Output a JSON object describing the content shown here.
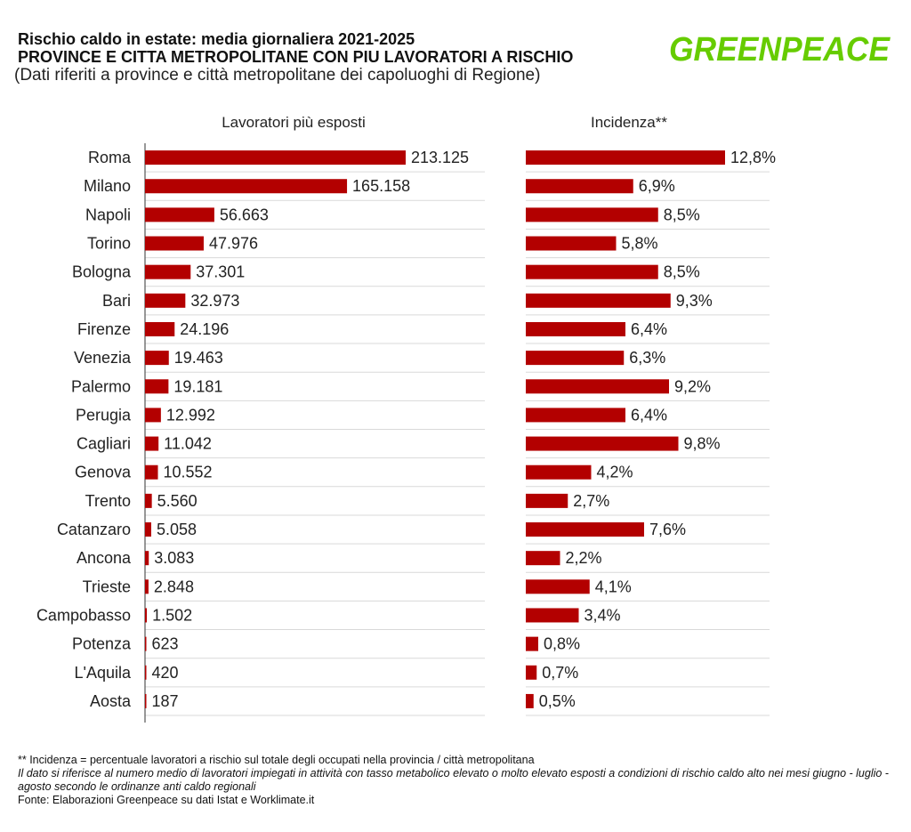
{
  "header": {
    "title": "Rischio caldo in estate: media giornaliera 2021-2025",
    "subtitle": "PROVINCE E CITTA METROPOLITANE CON PIU LAVORATORI A RISCHIO",
    "note": "(Dati riferiti a province e città metropolitane dei capoluoghi di Regione)"
  },
  "logo": {
    "text": "GREENPEACE",
    "color": "#66cc00"
  },
  "colors": {
    "bar": "#b30000",
    "axis": "#555555",
    "grid": "#d9d9d9"
  },
  "chart_data": {
    "type": "bar",
    "orientation": "horizontal",
    "categories": [
      "Roma",
      "Milano",
      "Napoli",
      "Torino",
      "Bologna",
      "Bari",
      "Firenze",
      "Venezia",
      "Palermo",
      "Perugia",
      "Cagliari",
      "Genova",
      "Trento",
      "Catanzaro",
      "Ancona",
      "Trieste",
      "Campobasso",
      "Potenza",
      "L'Aquila",
      "Aosta"
    ],
    "series": [
      {
        "name": "Lavoratori più esposti",
        "values": [
          213125,
          165158,
          56663,
          47976,
          37301,
          32973,
          24196,
          19463,
          19181,
          12992,
          11042,
          10552,
          5560,
          5058,
          3083,
          2848,
          1502,
          623,
          420,
          187
        ],
        "labels": [
          "213.125",
          "165.158",
          "56.663",
          "47.976",
          "37.301",
          "32.973",
          "24.196",
          "19.463",
          "19.181",
          "12.992",
          "11.042",
          "10.552",
          "5.560",
          "5.058",
          "3.083",
          "2.848",
          "1.502",
          "623",
          "420",
          "187"
        ]
      },
      {
        "name": "Incidenza**",
        "values": [
          12.8,
          6.9,
          8.5,
          5.8,
          8.5,
          9.3,
          6.4,
          6.3,
          9.2,
          6.4,
          9.8,
          4.2,
          2.7,
          7.6,
          2.2,
          4.1,
          3.4,
          0.8,
          0.7,
          0.5
        ],
        "labels": [
          "12,8%",
          "6,9%",
          "8,5%",
          "5,8%",
          "8,5%",
          "9,3%",
          "6,4%",
          "6,3%",
          "9,2%",
          "6,4%",
          "9,8%",
          "4,2%",
          "2,7%",
          "7,6%",
          "2,2%",
          "4,1%",
          "3,4%",
          "0,8%",
          "0,7%",
          "0,5%"
        ]
      }
    ],
    "grid": true,
    "legend": "none"
  },
  "footer": {
    "definition": "** Incidenza = percentuale lavoratori a rischio sul totale degli occupati nella provincia / città metropolitana",
    "explanation": "Il dato si riferisce al numero medio di lavoratori impiegati in attività con tasso metabolico elevato o molto elevato esposti a condizioni di rischio caldo alto nei mesi giugno - luglio - agosto secondo le ordinanze anti caldo regionali",
    "source": "Fonte: Elaborazioni Greenpeace su dati Istat e Worklimate.it"
  }
}
